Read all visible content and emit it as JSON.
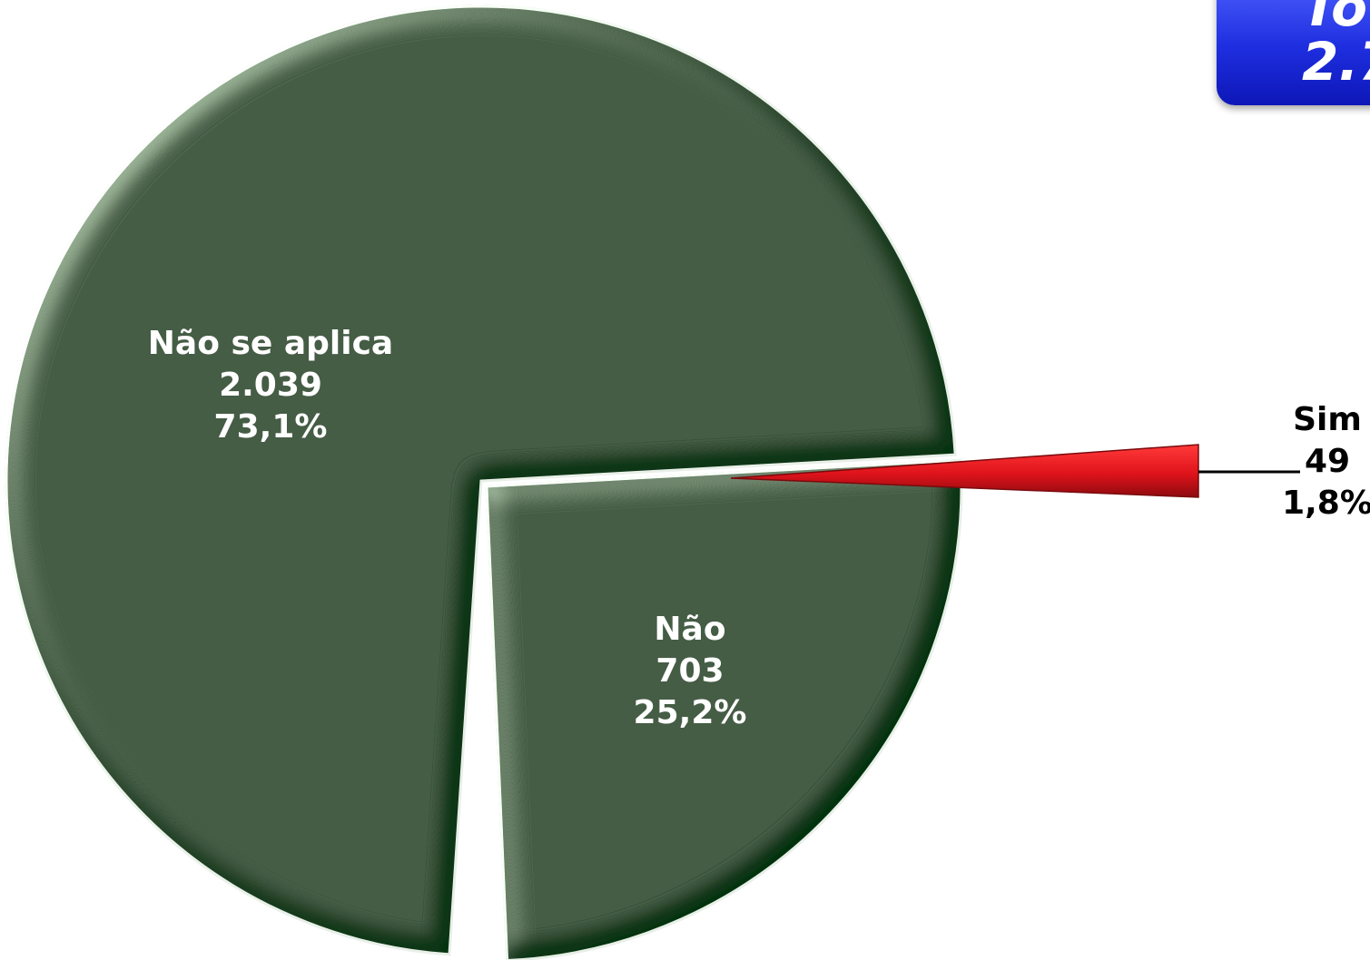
{
  "chart_data": {
    "type": "pie",
    "slices": [
      {
        "label": "Não se aplica",
        "count": "2.039",
        "percent": "73,1%",
        "value": 2039,
        "color": "#05320a"
      },
      {
        "label": "Não",
        "count": "703",
        "percent": "25,2%",
        "value": 703,
        "color": "#05320a"
      },
      {
        "label": "Sim",
        "count": "49",
        "percent": "1,8%",
        "value": 49,
        "color": "#e0131b"
      }
    ],
    "total": {
      "label": "To",
      "value": "2.7"
    }
  }
}
